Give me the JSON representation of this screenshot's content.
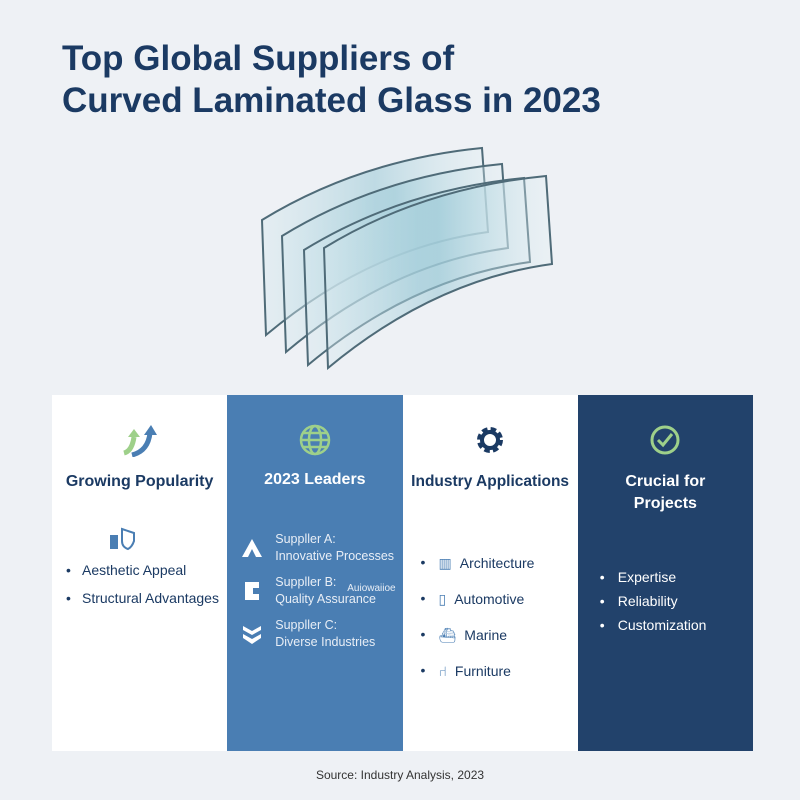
{
  "title": [
    "Top Global Suppliers of",
    "Curved Laminated Glass in 2023"
  ],
  "columns": [
    {
      "heading": "Growing Popularity",
      "icon": "growth-arrows-icon",
      "items": [
        "Aesthetic Appeal",
        "Structural Advantages"
      ]
    },
    {
      "heading": "2023 Leaders",
      "icon": "globe-icon",
      "items": [
        {
          "name": "Suppller A:",
          "desc": "Innovative Processes",
          "icon": "supplier-a-logo-icon"
        },
        {
          "name": "Suppller B:",
          "desc": "Quality Assurance",
          "icon": "supplier-b-logo-icon"
        },
        {
          "name": "Suppller C:",
          "desc": "Diverse Industries",
          "icon": "supplier-c-logo-icon"
        }
      ],
      "stray_text": "Auiowaiioe"
    },
    {
      "heading": "Industry Applications",
      "icon": "gear-icon",
      "items": [
        {
          "label": "Architecture",
          "icon": "building-icon"
        },
        {
          "label": "Automotive",
          "icon": "tower-icon"
        },
        {
          "label": "Marine",
          "icon": "ship-icon"
        },
        {
          "label": "Furniture",
          "icon": "chair-icon"
        }
      ]
    },
    {
      "heading": "Crucial for Projects",
      "icon": "check-circle-icon",
      "items": [
        "Expertise",
        "Reliability",
        "Customization"
      ]
    }
  ],
  "source": "Source: Industry Analysis, 2023",
  "colors": {
    "title": "#1b3a63",
    "col2": "#4a7eb3",
    "col4": "#22426b",
    "accent": "#8fcf7a"
  }
}
